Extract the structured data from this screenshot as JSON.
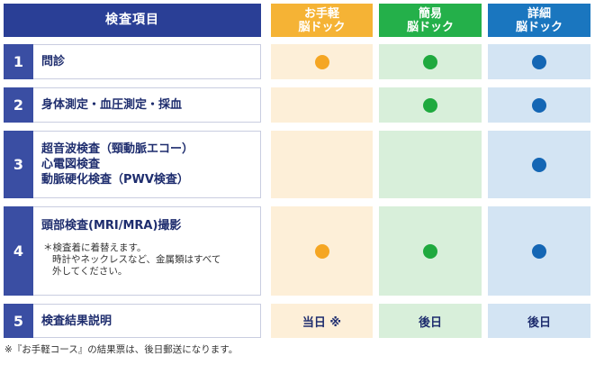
{
  "headers": {
    "main": "検査項目",
    "easy": [
      "お手軽",
      "脳ドック"
    ],
    "simple": [
      "簡易",
      "脳ドック"
    ],
    "detail": [
      "詳細",
      "脳ドック"
    ]
  },
  "colors": {
    "header_main": "#2a3f96",
    "header_easy": "#f5b335",
    "header_simple": "#24b04a",
    "header_detail": "#1a76bf",
    "number_cell": "#3a4ea3",
    "easy_bg": "#fdefd8",
    "simple_bg": "#d8efda",
    "detail_bg": "#d3e4f3"
  },
  "rows": [
    {
      "number": "1",
      "lines": [
        "問診"
      ],
      "easy": "dot",
      "simple": "dot",
      "detail": "dot"
    },
    {
      "number": "2",
      "lines": [
        "身体測定・血圧測定・採血"
      ],
      "easy": "",
      "simple": "dot",
      "detail": "dot"
    },
    {
      "number": "3",
      "lines": [
        "超音波検査（頸動脈エコー）",
        "心電図検査",
        "動脈硬化検査（PWV検査）"
      ],
      "easy": "",
      "simple": "",
      "detail": "dot"
    },
    {
      "number": "4",
      "lines": [
        "頭部検査(MRI/MRA)撮影"
      ],
      "note": [
        "＊検査着に着替えます。",
        "時計やネックレスなど、金属類はすべて",
        "外してください。"
      ],
      "easy": "dot",
      "simple": "dot",
      "detail": "dot"
    },
    {
      "number": "5",
      "lines": [
        "検査結果説明"
      ],
      "easy": "当日 ※",
      "simple": "後日",
      "detail": "後日"
    }
  ],
  "footnote": "※『お手軽コース』の結果票は、後日郵送になります。"
}
